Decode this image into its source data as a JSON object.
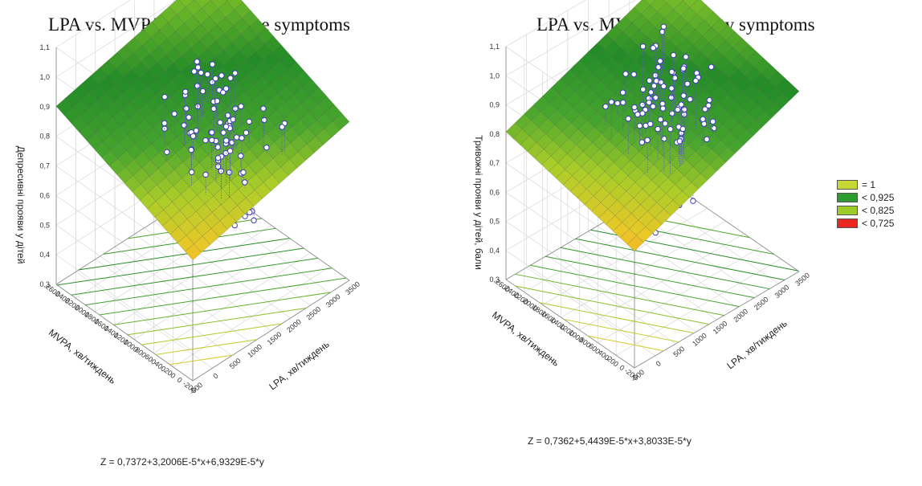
{
  "chart_data": [
    {
      "type": "surface3d",
      "title": "LPA vs. MVPA vs. depressive symptoms",
      "zlabel": "Депресивні прояви у дітей",
      "xlabel": "LPA, хв/тиждень",
      "ylabel": "MVPA, хв/тиждень",
      "equation": "Z = 0,7372+3,2006E-5*x+6,9329E-5*y",
      "z_ticks": [
        "0,3",
        "0,4",
        "0,5",
        "0,6",
        "0,7",
        "0,8",
        "0,9",
        "1,0",
        "1,1"
      ],
      "x_ticks": [
        "-500",
        "0",
        "500",
        "1000",
        "1500",
        "2000",
        "2500",
        "3000",
        "3500"
      ],
      "y_ticks": [
        "-200",
        "0",
        "200",
        "400",
        "600",
        "800",
        "1000",
        "1200",
        "1400",
        "1600",
        "1800",
        "2000",
        "2200",
        "2400",
        "2600"
      ],
      "x_range": [
        -500,
        3500
      ],
      "y_range": [
        -200,
        2600
      ],
      "z_range": [
        0.3,
        1.1
      ],
      "intercept": 0.7372,
      "coef_x": 3.2006e-05,
      "coef_y": 6.9329e-05
    },
    {
      "type": "surface3d",
      "title": "LPA vs. MVPA vs. anxiety symptoms",
      "zlabel": "Тривожні прояви у дітей, бали",
      "xlabel": "LPA, хв/тиждень",
      "ylabel": "MVPA, хв/тиждень",
      "equation": "Z = 0,7362+5,4439E-5*x+3,8033E-5*y",
      "z_ticks": [
        "0,3",
        "0,4",
        "0,5",
        "0,6",
        "0,7",
        "0,8",
        "0,9",
        "1,0",
        "1,1"
      ],
      "x_ticks": [
        "-500",
        "0",
        "500",
        "1000",
        "1500",
        "2000",
        "2500",
        "3000",
        "3500"
      ],
      "y_ticks": [
        "-200",
        "0",
        "200",
        "400",
        "600",
        "800",
        "1000",
        "1200",
        "1400",
        "1600",
        "1800",
        "2000",
        "2200",
        "2400",
        "2600"
      ],
      "x_range": [
        -500,
        3500
      ],
      "y_range": [
        -200,
        2600
      ],
      "z_range": [
        0.3,
        1.1
      ],
      "intercept": 0.7362,
      "coef_x": 5.4439e-05,
      "coef_y": 3.8033e-05
    }
  ],
  "legend": [
    {
      "label": "= 1",
      "color": "#c8d832"
    },
    {
      "label": "< 0,925",
      "color": "#2e9b2e"
    },
    {
      "label": "< 0,825",
      "color": "#9ccc28"
    },
    {
      "label": "< 0,725",
      "color": "#e8281e"
    }
  ]
}
